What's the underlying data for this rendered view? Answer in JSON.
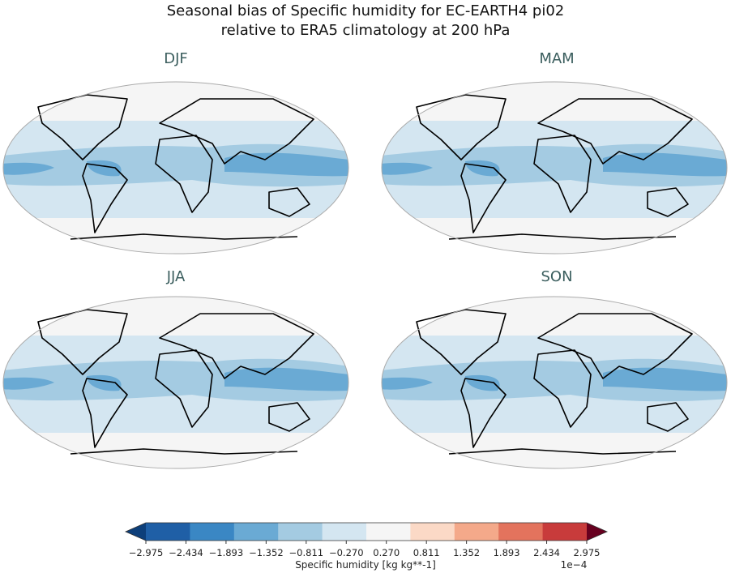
{
  "header": {
    "title_lines": [
      "Seasonal bias of Specific humidity for EC-EARTH4 pi02",
      "relative to ERA5 climatology at 200 hPa"
    ]
  },
  "panels": [
    {
      "title": "DJF"
    },
    {
      "title": "MAM"
    },
    {
      "title": "JJA"
    },
    {
      "title": "SON"
    }
  ],
  "colorbar": {
    "ticks": [
      "−2.975",
      "−2.434",
      "−1.893",
      "−1.352",
      "−0.811",
      "−0.270",
      "0.270",
      "0.811",
      "1.352",
      "1.893",
      "2.434",
      "2.975"
    ],
    "colors": [
      "#1f5fa6",
      "#3a87c4",
      "#6aaad4",
      "#a4cbe2",
      "#d4e6f1",
      "#f5f5f5",
      "#fbd9c6",
      "#f4a98a",
      "#e3735d",
      "#c83b3b",
      "#a1142a"
    ],
    "extend_colors": [
      "#0d3f7a",
      "#67001f"
    ],
    "label": "Specific humidity [kg kg**-1]",
    "scale": "1e−4"
  }
}
